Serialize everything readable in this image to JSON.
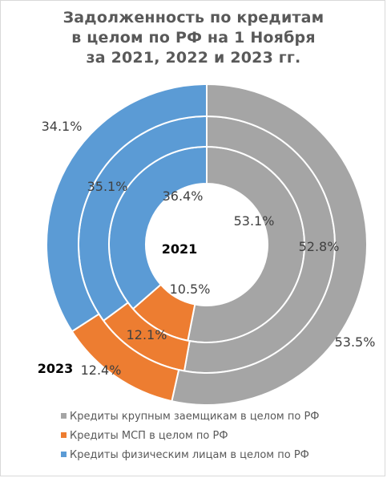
{
  "chart_data": {
    "type": "donut",
    "title_lines": [
      "Задолженность по кредитам",
      "в целом по РФ на 1 Ноября",
      "за 2021, 2022 и 2023 гг."
    ],
    "categories": [
      "Кредиты крупным заемщикам в целом по РФ",
      "Кредиты МСП в целом по РФ",
      "Кредиты физическим лицам в целом по РФ"
    ],
    "colors": [
      "#a5a5a5",
      "#ed7d31",
      "#5b9bd5"
    ],
    "series": [
      {
        "name": "2021",
        "values": [
          53.1,
          10.5,
          36.4
        ],
        "labels": [
          "53.1%",
          "10.5%",
          "36.4%"
        ]
      },
      {
        "name": "",
        "values": [
          52.8,
          12.1,
          35.1
        ],
        "labels": [
          "52.8%",
          "12.1%",
          "35.1%"
        ]
      },
      {
        "name": "2023",
        "values": [
          53.5,
          12.4,
          34.1
        ],
        "labels": [
          "53.5%",
          "12.4%",
          "34.1%"
        ]
      }
    ],
    "legend_position": "bottom"
  }
}
